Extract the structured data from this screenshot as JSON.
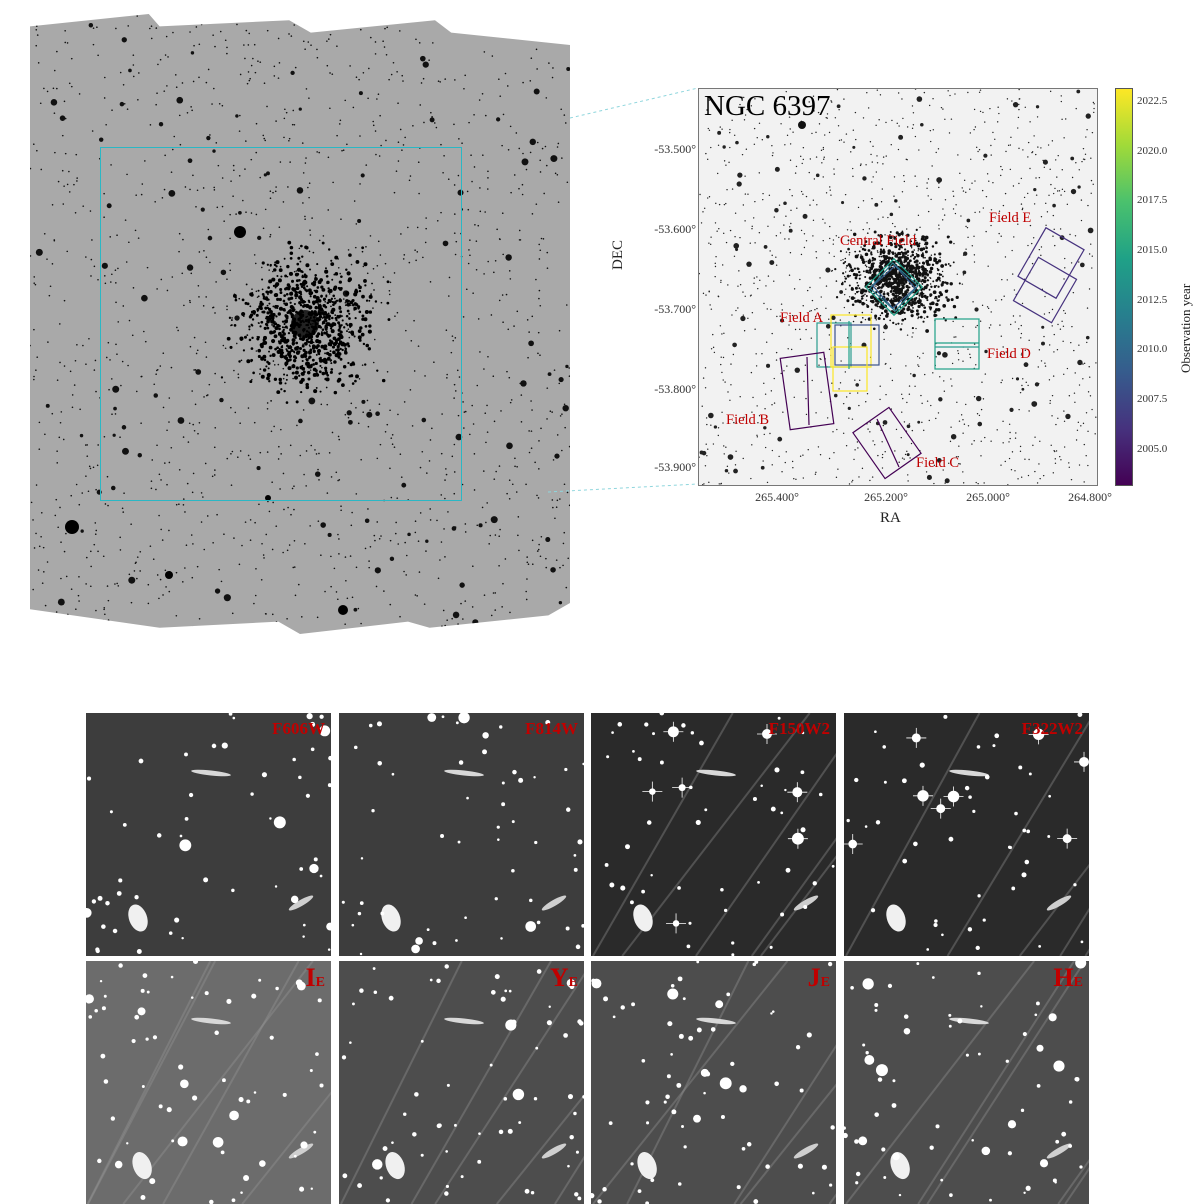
{
  "map": {
    "title": "NGC 6397",
    "xlabel": "RA",
    "ylabel": "DEC",
    "dec_ticks": [
      "-53.500°",
      "-53.600°",
      "-53.700°",
      "-53.800°",
      "-53.900°"
    ],
    "ra_ticks": [
      "265.400°",
      "265.200°",
      "265.000°",
      "264.800°"
    ],
    "fields": {
      "central": "Central Field",
      "a": "Field A",
      "b": "Field B",
      "c": "Field C",
      "d": "Field D",
      "e": "Field E"
    }
  },
  "colorbar": {
    "label": "Observation year",
    "ticks": [
      "2022.5",
      "2020.0",
      "2017.5",
      "2015.0",
      "2012.5",
      "2010.0",
      "2007.5",
      "2005.0"
    ]
  },
  "panels": [
    {
      "label": "F606W"
    },
    {
      "label": "F814W"
    },
    {
      "label": "F150W2"
    },
    {
      "label": "F322W2"
    },
    {
      "main": "I",
      "sub": "E"
    },
    {
      "main": "Y",
      "sub": "E"
    },
    {
      "main": "J",
      "sub": "E"
    },
    {
      "main": "H",
      "sub": "E"
    }
  ]
}
